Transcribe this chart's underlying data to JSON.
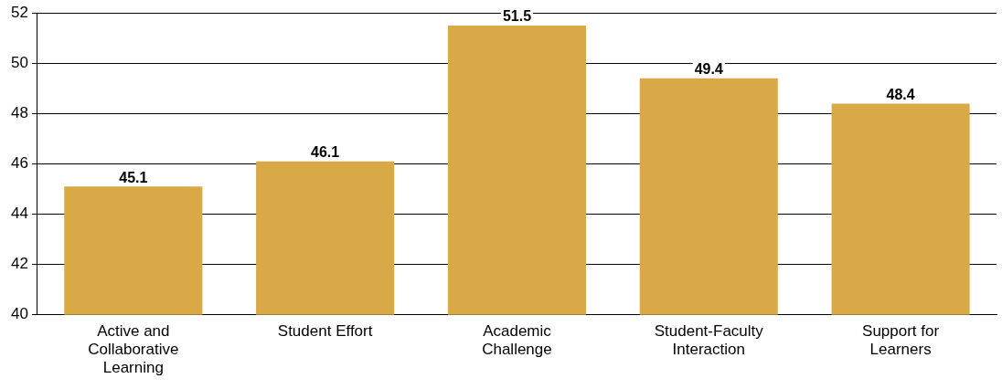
{
  "chart_data": {
    "type": "bar",
    "categories": [
      "Active and Collaborative Learning",
      "Student Effort",
      "Academic Challenge",
      "Student-Faculty Interaction",
      "Support for Learners"
    ],
    "values": [
      45.1,
      46.1,
      51.5,
      49.4,
      48.4
    ],
    "color": "#d9a847",
    "ylim": [
      40,
      52
    ],
    "yticks": [
      40,
      42,
      44,
      46,
      48,
      50,
      52
    ],
    "grid": "y",
    "data_labels": true,
    "legend": false
  }
}
